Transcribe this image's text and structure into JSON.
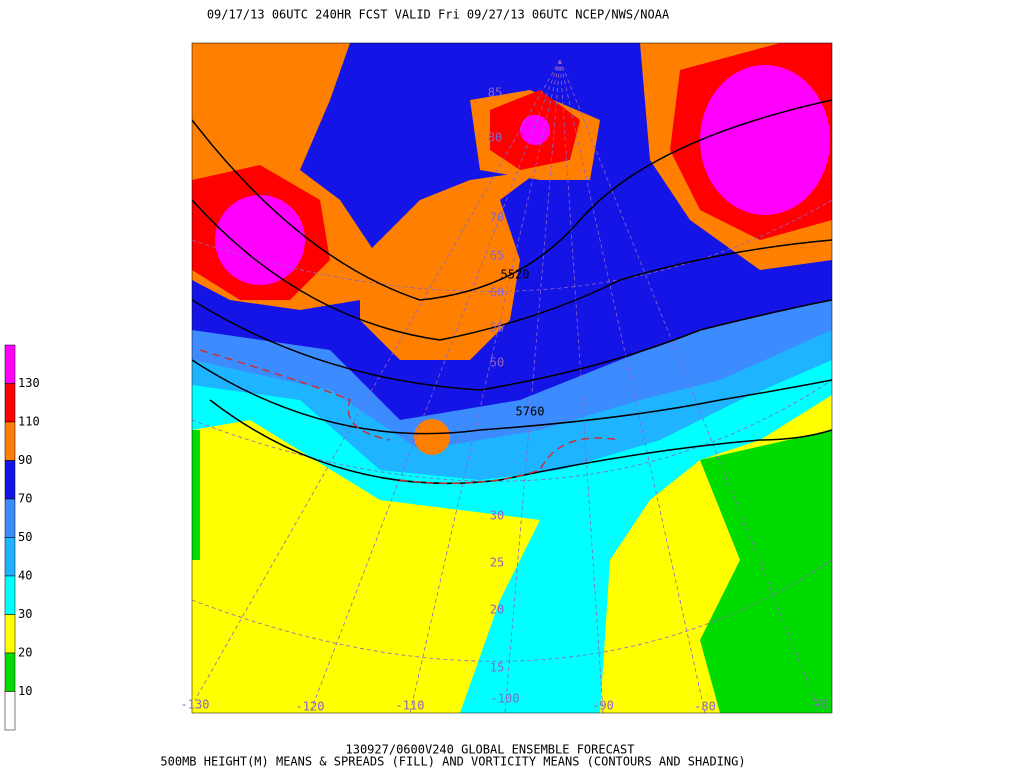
{
  "header": {
    "title": "09/17/13 06UTC  240HR  FCST VALID Fri 09/27/13 06UTC  NCEP/NWS/NOAA"
  },
  "colorbar": {
    "colors": [
      "#ff00ff",
      "#ff0000",
      "#ff8000",
      "#1414e6",
      "#3c8cff",
      "#1eb4ff",
      "#00ffff",
      "#ffff00",
      "#00dc00",
      "#ffffff"
    ],
    "labels": [
      "130",
      "110",
      "90",
      "70",
      "50",
      "40",
      "30",
      "20",
      "10"
    ]
  },
  "map": {
    "latitude_labels": [
      "85",
      "80",
      "70",
      "65",
      "60",
      "55",
      "50",
      "30",
      "25",
      "20",
      "15"
    ],
    "longitude_labels": [
      "-130",
      "-120",
      "-110",
      "-100",
      "-90",
      "-80",
      "-70"
    ],
    "contour_labels": [
      "5520",
      "5760"
    ]
  },
  "footer": {
    "line1": "130927/0600V240 GLOBAL ENSEMBLE FORECAST",
    "line2": "500MB HEIGHT(M) MEANS & SPREADS (FILL) AND VORTICITY MEANS (CONTOURS AND SHADING)"
  }
}
